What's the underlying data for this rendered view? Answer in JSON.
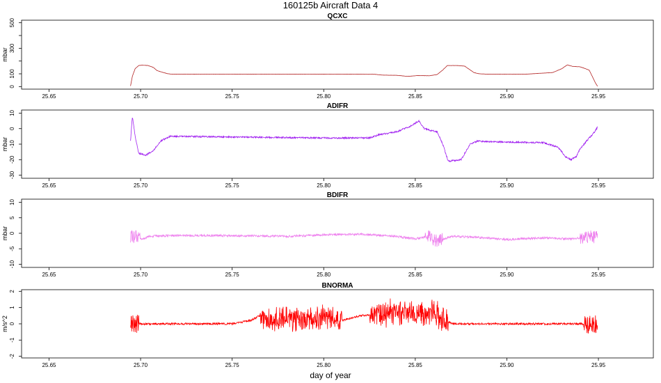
{
  "figure": {
    "title": "160125b   Aircraft Data 4",
    "xlabel": "day of year"
  },
  "chart_data": [
    {
      "type": "line",
      "title": "QCXC",
      "ylabel": "mbar",
      "color": "#b22222",
      "xlim": [
        25.635,
        25.98
      ],
      "ylim": [
        -20,
        520
      ],
      "x_ticks": [
        25.65,
        25.7,
        25.75,
        25.8,
        25.85,
        25.9,
        25.95
      ],
      "x_tick_labels": [
        "25.65",
        "25.70",
        "25.75",
        "25.80",
        "25.85",
        "25.90",
        "25.95"
      ],
      "y_ticks": [
        0,
        100,
        200,
        300,
        400,
        500
      ],
      "y_tick_labels": [
        "0",
        "100",
        "",
        "300",
        "",
        "500"
      ],
      "noise": 0.8,
      "x": [
        25.6945,
        25.6955,
        25.697,
        25.699,
        25.701,
        25.704,
        25.707,
        25.709,
        25.712,
        25.715,
        25.718,
        25.74,
        25.78,
        25.82,
        25.828,
        25.832,
        25.84,
        25.846,
        25.851,
        25.858,
        25.862,
        25.865,
        25.8675,
        25.873,
        25.877,
        25.879,
        25.882,
        25.885,
        25.89,
        25.91,
        25.925,
        25.93,
        25.933,
        25.936,
        25.94,
        25.943,
        25.945,
        25.947,
        25.9485,
        25.9495
      ],
      "y": [
        5,
        80,
        140,
        165,
        168,
        165,
        150,
        125,
        112,
        100,
        97,
        97,
        97,
        97,
        96,
        90,
        88,
        80,
        86,
        85,
        95,
        130,
        165,
        165,
        160,
        140,
        110,
        100,
        97,
        97,
        110,
        140,
        170,
        158,
        155,
        140,
        128,
        70,
        25,
        3
      ]
    },
    {
      "type": "line",
      "title": "ADIFR",
      "ylabel": "mbar",
      "color": "#a020f0",
      "xlim": [
        25.635,
        25.98
      ],
      "ylim": [
        -32,
        12
      ],
      "x_ticks": [
        25.65,
        25.7,
        25.75,
        25.8,
        25.85,
        25.9,
        25.95
      ],
      "x_tick_labels": [
        "25.65",
        "25.70",
        "25.75",
        "25.80",
        "25.85",
        "25.90",
        "25.95"
      ],
      "y_ticks": [
        -30,
        -20,
        -10,
        0,
        10
      ],
      "y_tick_labels": [
        "-30",
        "-20",
        "-10",
        "0",
        "10"
      ],
      "noise": 0.5,
      "x": [
        25.6945,
        25.6955,
        25.697,
        25.699,
        25.703,
        25.707,
        25.711,
        25.716,
        25.72,
        25.76,
        25.8,
        25.825,
        25.83,
        25.84,
        25.848,
        25.852,
        25.855,
        25.858,
        25.862,
        25.865,
        25.868,
        25.875,
        25.88,
        25.884,
        25.89,
        25.92,
        25.928,
        25.932,
        25.935,
        25.938,
        25.94,
        25.945,
        25.948,
        25.9495
      ],
      "y": [
        -8,
        8,
        -5,
        -16,
        -17,
        -14,
        -8,
        -5,
        -5,
        -5.5,
        -6,
        -6,
        -4,
        -2,
        2,
        5,
        0,
        -1,
        -2,
        -10,
        -21,
        -20,
        -10,
        -8,
        -8.5,
        -9,
        -12,
        -18,
        -20,
        -18,
        -13,
        -6,
        -2,
        1
      ]
    },
    {
      "type": "line",
      "title": "BDIFR",
      "ylabel": "mbar",
      "color": "#ee82ee",
      "xlim": [
        25.635,
        25.98
      ],
      "ylim": [
        -11,
        11
      ],
      "x_ticks": [
        25.65,
        25.7,
        25.75,
        25.8,
        25.85,
        25.9,
        25.95
      ],
      "x_tick_labels": [
        "25.65",
        "25.70",
        "25.75",
        "25.80",
        "25.85",
        "25.90",
        "25.95"
      ],
      "y_ticks": [
        -10,
        -5,
        0,
        5,
        10
      ],
      "y_tick_labels": [
        "-10",
        "-5",
        "0",
        "5",
        "10"
      ],
      "noise": 0.35,
      "x": [
        25.6945,
        25.697,
        25.7,
        25.705,
        25.72,
        25.76,
        25.78,
        25.8,
        25.82,
        25.84,
        25.85,
        25.857,
        25.862,
        25.87,
        25.88,
        25.89,
        25.9,
        25.92,
        25.935,
        25.945,
        25.9495
      ],
      "y": [
        -1,
        -1,
        -2,
        -1,
        -0.7,
        -0.8,
        -1,
        -0.5,
        -0.3,
        -1,
        -1.8,
        -1,
        -2.5,
        -1,
        -1.2,
        -1.6,
        -2,
        -1.5,
        -1.8,
        -1,
        -1.2
      ]
    },
    {
      "type": "line",
      "title": "BNORMA",
      "ylabel": "m/s^2",
      "color": "#ff0000",
      "xlim": [
        25.635,
        25.98
      ],
      "ylim": [
        -2.1,
        2.1
      ],
      "x_ticks": [
        25.65,
        25.7,
        25.75,
        25.8,
        25.85,
        25.9,
        25.95
      ],
      "x_tick_labels": [
        "25.65",
        "25.70",
        "25.75",
        "25.80",
        "25.85",
        "25.90",
        "25.95"
      ],
      "y_ticks": [
        -2,
        -1,
        0,
        1,
        2
      ],
      "y_tick_labels": [
        "-2",
        "-1",
        "0",
        "1",
        "2"
      ],
      "noise": 0.06,
      "x": [
        25.6945,
        25.7,
        25.75,
        25.76,
        25.765,
        25.77,
        25.775,
        25.78,
        25.785,
        25.79,
        25.8,
        25.81,
        25.82,
        25.83,
        25.84,
        25.85,
        25.86,
        25.865,
        25.87,
        25.9,
        25.94,
        25.9495
      ],
      "y": [
        0,
        0,
        0,
        0.2,
        0.5,
        0.3,
        0.2,
        0.4,
        0.3,
        0.2,
        0.5,
        0.2,
        0.5,
        0.6,
        0.7,
        0.6,
        0.7,
        0.3,
        0,
        0,
        0,
        0
      ]
    }
  ]
}
